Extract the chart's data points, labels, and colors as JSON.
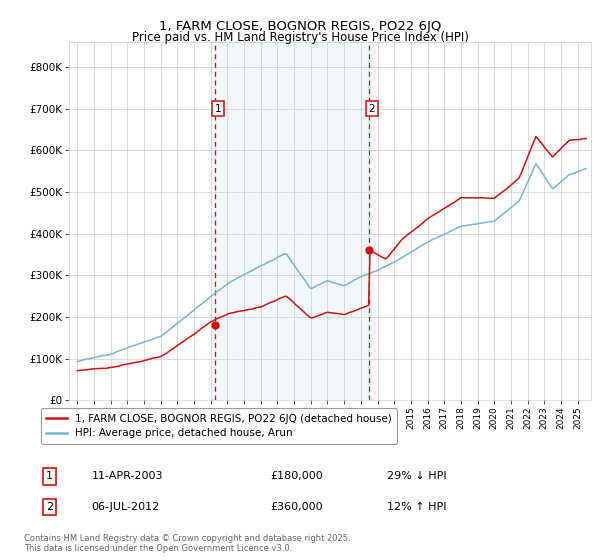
{
  "title_line1": "1, FARM CLOSE, BOGNOR REGIS, PO22 6JQ",
  "title_line2": "Price paid vs. HM Land Registry's House Price Index (HPI)",
  "ylim": [
    0,
    860000
  ],
  "yticks": [
    0,
    100000,
    200000,
    300000,
    400000,
    500000,
    600000,
    700000,
    800000
  ],
  "ytick_labels": [
    "£0",
    "£100K",
    "£200K",
    "£300K",
    "£400K",
    "£500K",
    "£600K",
    "£700K",
    "£800K"
  ],
  "sale1_date_num": 2003.27,
  "sale1_price": 180000,
  "sale2_date_num": 2012.51,
  "sale2_price": 360000,
  "hpi_color": "#7ab3d4",
  "price_color": "#cc1111",
  "vline_color": "#cc1111",
  "shade_color": "#daeaf5",
  "background_color": "#ffffff",
  "grid_color": "#cccccc",
  "legend_label_price": "1, FARM CLOSE, BOGNOR REGIS, PO22 6JQ (detached house)",
  "legend_label_hpi": "HPI: Average price, detached house, Arun",
  "footnote": "Contains HM Land Registry data © Crown copyright and database right 2025.\nThis data is licensed under the Open Government Licence v3.0.",
  "xlim_start": 1994.5,
  "xlim_end": 2025.8
}
